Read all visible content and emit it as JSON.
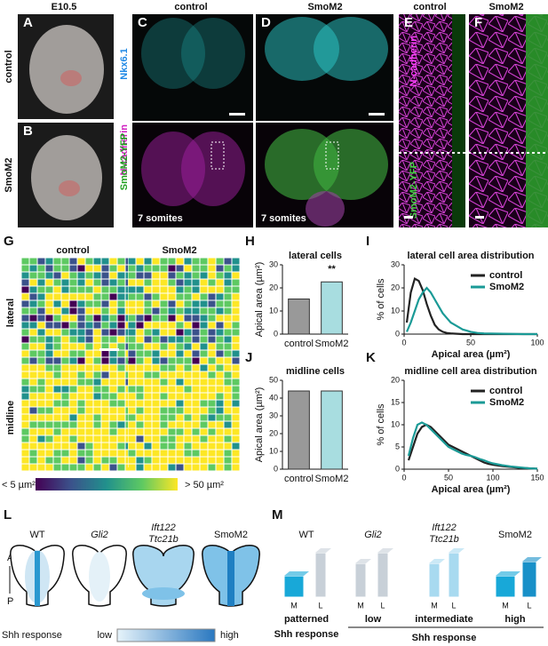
{
  "letters": [
    "A",
    "B",
    "C",
    "D",
    "E",
    "F",
    "G",
    "H",
    "I",
    "J",
    "K",
    "L",
    "M"
  ],
  "a": {
    "stage": "E10.5",
    "rows": [
      "control",
      "SmoM2"
    ]
  },
  "c": {
    "cols": [
      "control",
      "SmoM2"
    ],
    "labels": [
      "Nkx6.1",
      "N-cadherin",
      "SmoM2-YFP"
    ],
    "somites": [
      "7 somites",
      "7 somites"
    ]
  },
  "e": {
    "cols": [
      "control",
      "SmoM2"
    ],
    "labels": [
      "N-cadherin",
      "SmoM2-YFP"
    ]
  },
  "g": {
    "cols": [
      "control",
      "SmoM2"
    ],
    "rows": [
      "lateral",
      "midline"
    ],
    "colorbar": [
      "< 5 µm²",
      "> 50 µm²"
    ]
  },
  "l": {
    "genotypes": [
      "WT",
      "Gli2",
      "Ift122",
      "Ttc21b",
      "SmoM2"
    ],
    "axis": [
      "A",
      "P"
    ],
    "scale": [
      "Shh response",
      "low",
      "high"
    ]
  },
  "m": {
    "genotypes": [
      "WT",
      "Gli2",
      "Ift122",
      "Ttc21b",
      "SmoM2"
    ],
    "ml": [
      "M",
      "L"
    ],
    "levels": [
      "patterned",
      "Shh response",
      "low",
      "intermediate",
      "high"
    ],
    "axis_label": "Shh response"
  },
  "chart_data": [
    {
      "type": "bar",
      "title": "lateral cells",
      "ylabel": "Apical area (µm²)",
      "categories": [
        "control",
        "SmoM2"
      ],
      "values": [
        15.2,
        22.6
      ],
      "colors": [
        "#999999",
        "#a8dde0"
      ],
      "ylim": [
        0,
        30
      ],
      "yticks": [
        0,
        10,
        20,
        30
      ],
      "annotation": "**"
    },
    {
      "type": "line",
      "title": "lateral cell area distribution",
      "xlabel": "Apical area (µm²)",
      "ylabel": "% of cells",
      "x": [
        2,
        5,
        8,
        11,
        14,
        17,
        20,
        23,
        26,
        29,
        32,
        35,
        38,
        41,
        44,
        47,
        50,
        55,
        60,
        70,
        80,
        90,
        100
      ],
      "series": [
        {
          "name": "control",
          "color": "#222222",
          "values": [
            5,
            18,
            24,
            23,
            19,
            13,
            8,
            4,
            2,
            1,
            0.5,
            0.3,
            0.2,
            0.1,
            0,
            0,
            0,
            0,
            0,
            0,
            0,
            0,
            0
          ]
        },
        {
          "name": "SmoM2",
          "color": "#1a9a96",
          "values": [
            1,
            5,
            10,
            15,
            18,
            20,
            18,
            15,
            12,
            9,
            7,
            5,
            4,
            3,
            2,
            1.5,
            1,
            0.5,
            0.3,
            0.2,
            0.1,
            0,
            0
          ]
        }
      ],
      "xlim": [
        0,
        100
      ],
      "xticks": [
        0,
        50,
        100
      ],
      "ylim": [
        0,
        30
      ],
      "yticks": [
        0,
        10,
        20,
        30
      ],
      "legend": "upper right"
    },
    {
      "type": "bar",
      "title": "midline cells",
      "ylabel": "Apical area (µm²)",
      "categories": [
        "control",
        "SmoM2"
      ],
      "values": [
        44,
        44
      ],
      "colors": [
        "#999999",
        "#a8dde0"
      ],
      "ylim": [
        0,
        50
      ],
      "yticks": [
        0,
        10,
        20,
        30,
        40,
        50
      ]
    },
    {
      "type": "line",
      "title": "midline cell area distribution",
      "xlabel": "Apical area (µm²)",
      "ylabel": "% of cells",
      "x": [
        5,
        10,
        15,
        20,
        25,
        30,
        35,
        40,
        45,
        50,
        55,
        60,
        65,
        70,
        75,
        80,
        85,
        90,
        95,
        100,
        110,
        120,
        130,
        140,
        150
      ],
      "series": [
        {
          "name": "control",
          "color": "#222222",
          "values": [
            2,
            5,
            8,
            9.5,
            10,
            9.5,
            8.5,
            7.5,
            6.5,
            5.5,
            5,
            4.5,
            4,
            3.5,
            3,
            2.5,
            2,
            1.5,
            1.2,
            1,
            0.7,
            0.5,
            0.3,
            0.2,
            0.1
          ]
        },
        {
          "name": "SmoM2",
          "color": "#1a9a96",
          "values": [
            3,
            7,
            10,
            10.5,
            10,
            9,
            8,
            7,
            6,
            5,
            4.5,
            4,
            3.5,
            3.2,
            3,
            2.7,
            2.3,
            2,
            1.6,
            1.3,
            0.9,
            0.6,
            0.4,
            0.2,
            0.1
          ]
        }
      ],
      "xlim": [
        0,
        150
      ],
      "xticks": [
        0,
        50,
        100,
        150
      ],
      "ylim": [
        0,
        20
      ],
      "yticks": [
        0,
        5,
        10,
        15,
        20
      ],
      "legend": "upper right"
    }
  ]
}
